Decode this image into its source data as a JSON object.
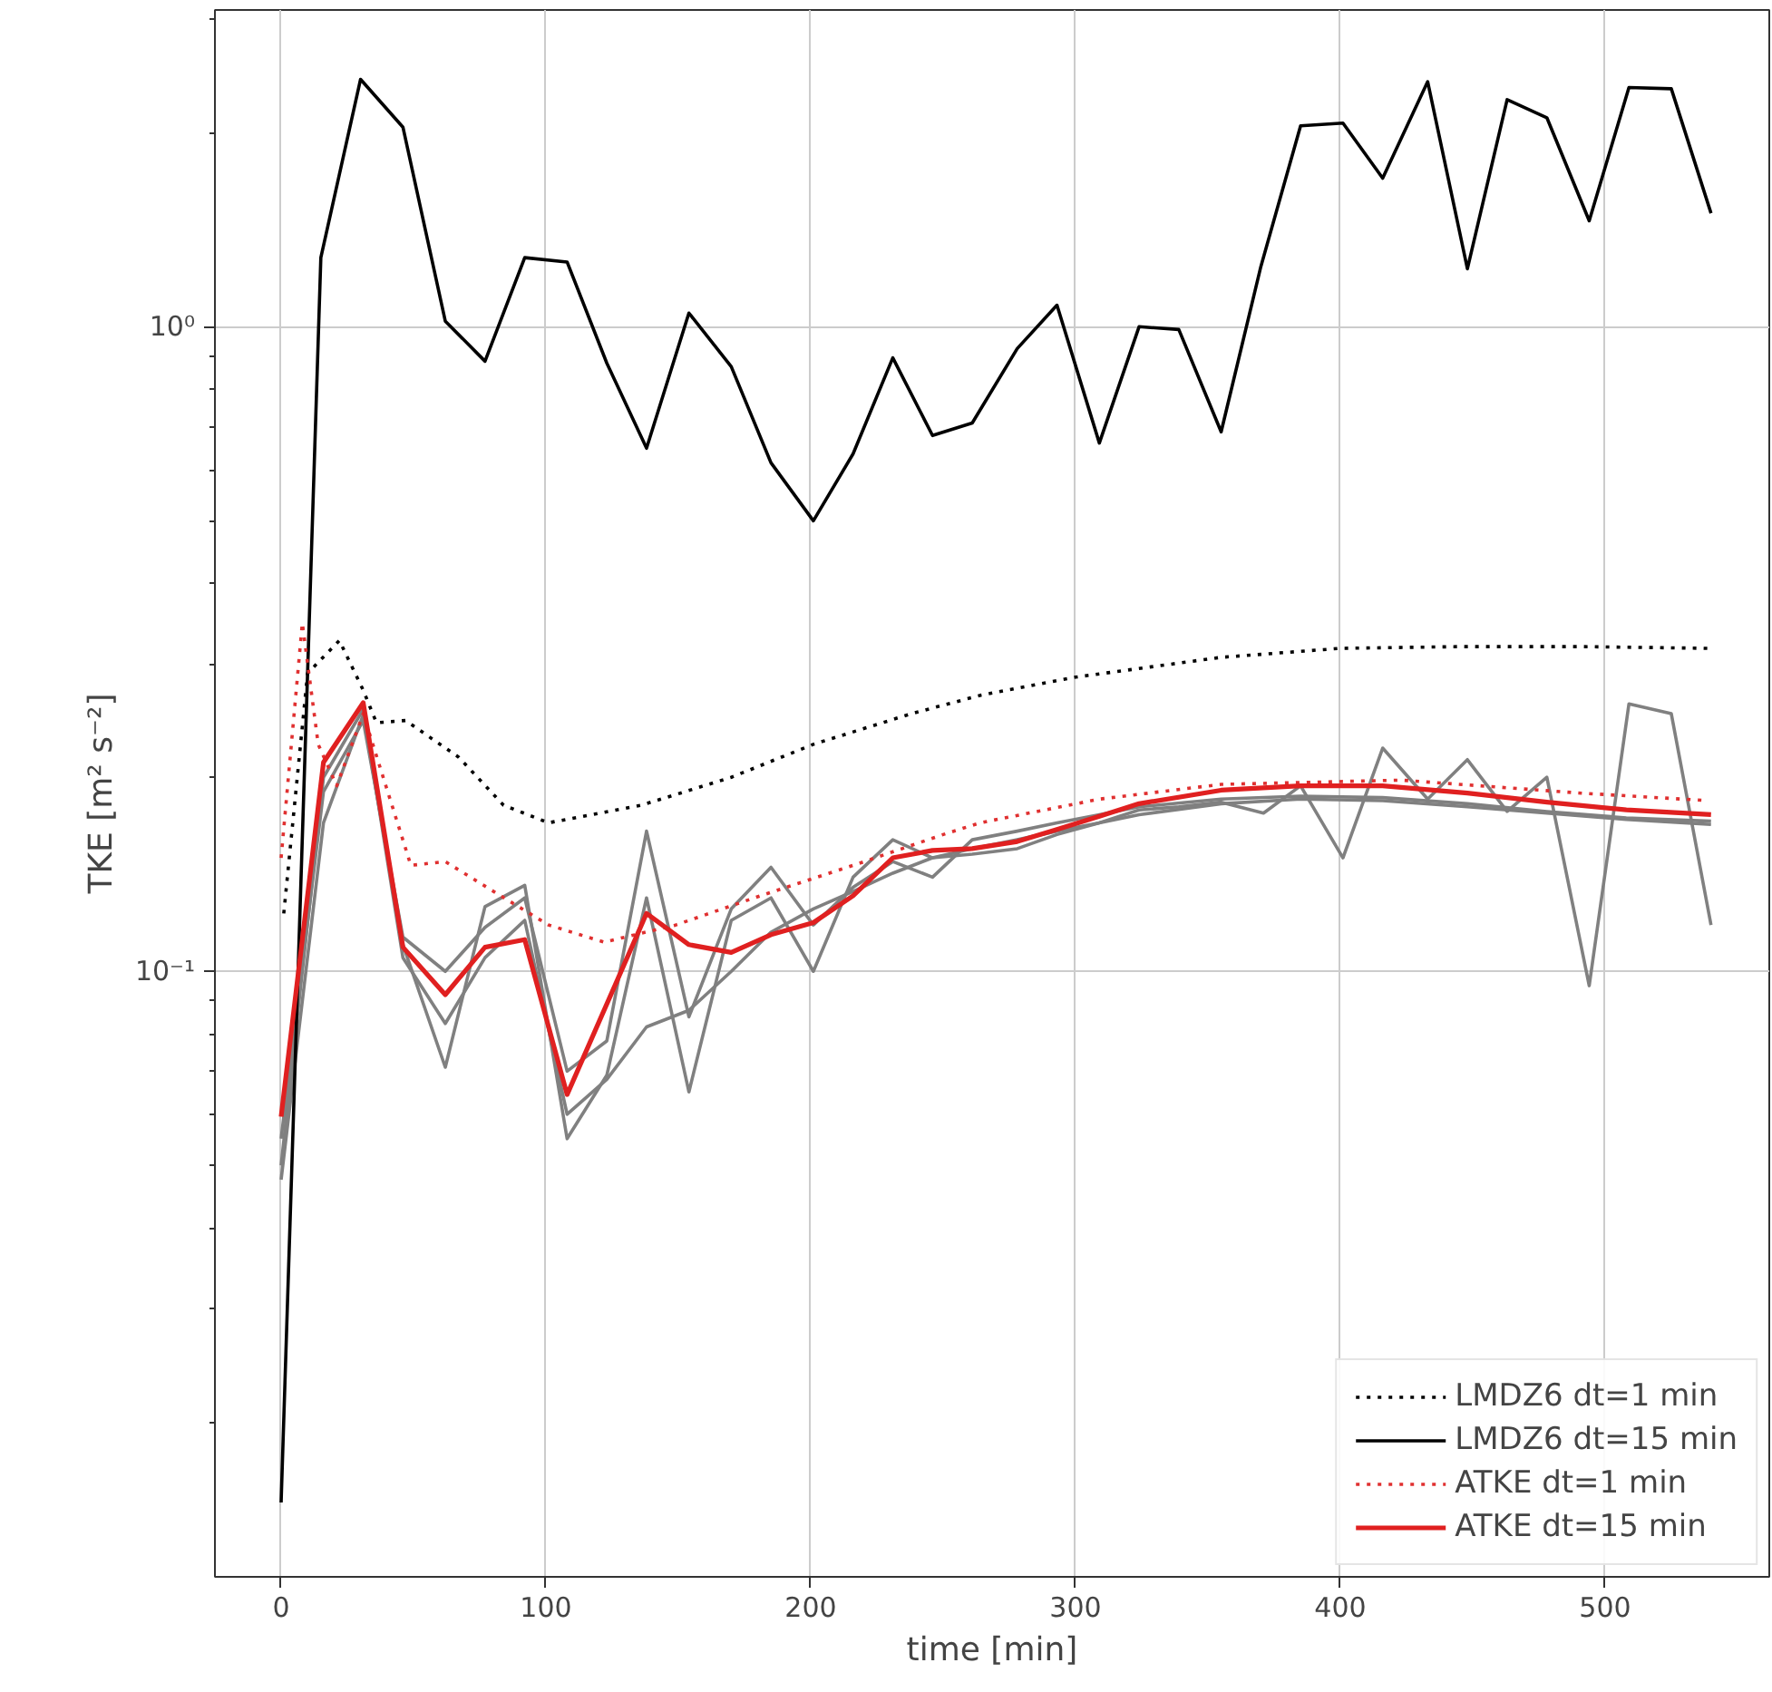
{
  "chart_data": {
    "type": "line",
    "xlabel": "time [min]",
    "ylabel": "TKE [m² s⁻²]",
    "log": "y",
    "grid": true,
    "legend": "bottom right",
    "xlim": [
      -25,
      562
    ],
    "ylim": [
      0.0115,
      3.1
    ],
    "xticks": [
      0,
      100,
      200,
      300,
      400,
      500
    ],
    "yticks": [
      {
        "value": 0.02,
        "label": null
      },
      {
        "value": 0.03,
        "label": null
      },
      {
        "value": 0.04,
        "label": null
      },
      {
        "value": 0.05,
        "label": null
      },
      {
        "value": 0.06,
        "label": null
      },
      {
        "value": 0.07,
        "label": null
      },
      {
        "value": 0.08,
        "label": null
      },
      {
        "value": 0.09,
        "label": null
      },
      {
        "value": 0.1,
        "label": "10⁻¹"
      },
      {
        "value": 0.2,
        "label": null
      },
      {
        "value": 0.3,
        "label": null
      },
      {
        "value": 0.4,
        "label": null
      },
      {
        "value": 0.5,
        "label": null
      },
      {
        "value": 0.6,
        "label": null
      },
      {
        "value": 0.7,
        "label": null
      },
      {
        "value": 0.8,
        "label": null
      },
      {
        "value": 0.9,
        "label": null
      },
      {
        "value": 1,
        "label": "10⁰"
      },
      {
        "value": 2,
        "label": null
      },
      {
        "value": 3,
        "label": null
      }
    ],
    "series": [
      {
        "color": "#808080",
        "line_style": "solid",
        "x": [
          0,
          16,
          31,
          46,
          62,
          77,
          92,
          108,
          123,
          138,
          154,
          170,
          185,
          201,
          216,
          231,
          246,
          261,
          278,
          293,
          309,
          324,
          339,
          355,
          371,
          385,
          401,
          416,
          433,
          448,
          463,
          478,
          494,
          509,
          525,
          540
        ],
        "values": [
          0.0475,
          0.17,
          0.25,
          0.11,
          0.071,
          0.126,
          0.136,
          0.055,
          0.069,
          0.13,
          0.065,
          0.12,
          0.13,
          0.1,
          0.14,
          0.16,
          0.15,
          0.155,
          0.16,
          0.165,
          0.17,
          0.178,
          0.18,
          0.183,
          0.176,
          0.194,
          0.15,
          0.222,
          0.185,
          0.213,
          0.177,
          0.2,
          0.095,
          0.26,
          0.251,
          0.118
        ]
      },
      {
        "color": "#808080",
        "line_style": "solid",
        "x": [
          0,
          16,
          31,
          46,
          62,
          77,
          92,
          108,
          123,
          138,
          154,
          170,
          185,
          201,
          216,
          231,
          246,
          261,
          278,
          293,
          309,
          324,
          355,
          385,
          416,
          448,
          478,
          508,
          540
        ],
        "values": [
          0.055,
          0.19,
          0.245,
          0.113,
          0.1,
          0.117,
          0.13,
          0.07,
          0.078,
          0.165,
          0.085,
          0.125,
          0.145,
          0.118,
          0.135,
          0.148,
          0.14,
          0.16,
          0.165,
          0.17,
          0.175,
          0.18,
          0.185,
          0.187,
          0.186,
          0.182,
          0.177,
          0.173,
          0.171
        ]
      },
      {
        "color": "#808080",
        "line_style": "solid",
        "x": [
          0,
          16,
          31,
          46,
          62,
          77,
          92,
          108,
          123,
          138,
          154,
          170,
          185,
          201,
          216,
          231,
          246,
          261,
          278,
          293,
          309,
          324,
          355,
          385,
          416,
          448,
          478,
          508,
          540
        ],
        "values": [
          0.05,
          0.2,
          0.255,
          0.105,
          0.083,
          0.105,
          0.12,
          0.06,
          0.068,
          0.082,
          0.087,
          0.1,
          0.115,
          0.125,
          0.133,
          0.142,
          0.15,
          0.152,
          0.155,
          0.163,
          0.17,
          0.175,
          0.182,
          0.185,
          0.184,
          0.18,
          0.176,
          0.172,
          0.169
        ]
      },
      {
        "name": "LMDZ6 dt=1 min",
        "color": "#000000",
        "line_style": "dotted",
        "x": [
          1,
          10,
          22,
          31,
          36,
          47,
          67,
          84,
          101,
          136,
          170,
          201,
          238,
          264,
          300,
          355,
          400,
          446,
          491,
          539
        ],
        "values": [
          0.123,
          0.29,
          0.326,
          0.273,
          0.243,
          0.245,
          0.215,
          0.181,
          0.17,
          0.181,
          0.2,
          0.225,
          0.251,
          0.268,
          0.286,
          0.307,
          0.317,
          0.319,
          0.319,
          0.317
        ]
      },
      {
        "name": "LMDZ6 dt=15 min",
        "color": "#000000",
        "line_style": "solid",
        "x": [
          0,
          15,
          30,
          46,
          62,
          77,
          92,
          108,
          123,
          138,
          154,
          170,
          185,
          201,
          216,
          231,
          246,
          261,
          278,
          293,
          309,
          324,
          339,
          355,
          370,
          385,
          401,
          416,
          433,
          448,
          463,
          478,
          494,
          509,
          525,
          540
        ],
        "values": [
          0.015,
          1.28,
          2.42,
          2.04,
          1.02,
          0.884,
          1.28,
          1.26,
          0.878,
          0.648,
          1.05,
          0.867,
          0.615,
          0.5,
          0.635,
          0.895,
          0.678,
          0.709,
          0.925,
          1.08,
          0.66,
          1.0,
          0.99,
          0.687,
          1.24,
          2.05,
          2.07,
          1.7,
          2.4,
          1.23,
          2.25,
          2.11,
          1.46,
          2.35,
          2.34,
          1.5
        ]
      },
      {
        "name": "ATKE dt=1 min",
        "color": "#e03030",
        "line_style": "dotted",
        "x": [
          0,
          8,
          14,
          21,
          31,
          49,
          62,
          79,
          101,
          122,
          149,
          181,
          216,
          250,
          264,
          309,
          355,
          423,
          491,
          539
        ],
        "values": [
          0.15,
          0.347,
          0.225,
          0.194,
          0.251,
          0.146,
          0.148,
          0.134,
          0.118,
          0.111,
          0.118,
          0.131,
          0.146,
          0.163,
          0.17,
          0.185,
          0.195,
          0.198,
          0.189,
          0.184
        ]
      },
      {
        "name": "ATKE dt=15 min",
        "color": "#e02020",
        "line_style": "solid",
        "x": [
          0,
          16,
          31,
          46,
          62,
          77,
          92,
          108,
          138,
          154,
          170,
          185,
          201,
          216,
          231,
          246,
          261,
          278,
          293,
          309,
          324,
          355,
          385,
          416,
          448,
          478,
          508,
          540
        ],
        "values": [
          0.0595,
          0.211,
          0.261,
          0.109,
          0.092,
          0.109,
          0.112,
          0.0644,
          0.123,
          0.11,
          0.107,
          0.114,
          0.119,
          0.131,
          0.15,
          0.154,
          0.155,
          0.159,
          0.166,
          0.174,
          0.182,
          0.191,
          0.194,
          0.194,
          0.189,
          0.183,
          0.178,
          0.175
        ]
      }
    ]
  }
}
